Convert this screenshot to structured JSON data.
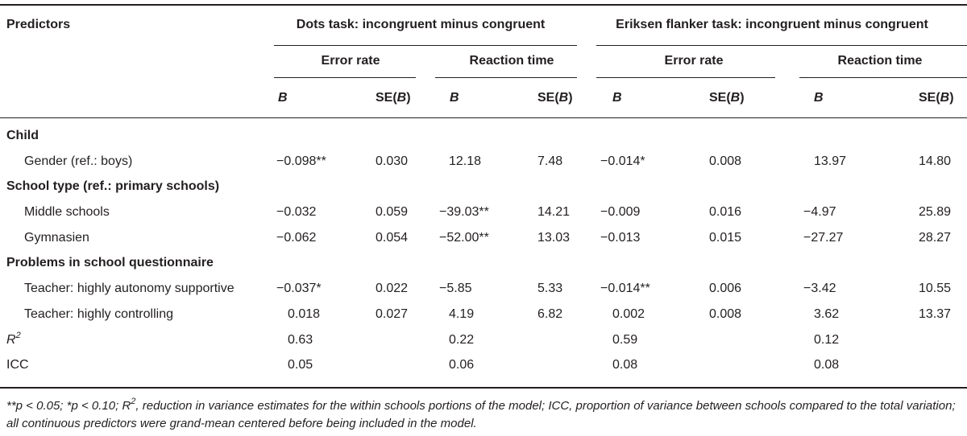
{
  "header": {
    "predictors": "Predictors",
    "dots_task": "Dots task: incongruent minus congruent",
    "eriksen_task": "Eriksen flanker task: incongruent minus congruent",
    "error_rate": "Error rate",
    "reaction_time": "Reaction time",
    "b": "B",
    "se_prefix": "SE(",
    "se_suffix": ")"
  },
  "sections": {
    "child": "Child",
    "school_type": "School type (ref.: primary schools)",
    "problems": "Problems in school questionnaire"
  },
  "rows": [
    {
      "label": "Gender (ref.: boys)",
      "values": [
        "−0.098**",
        "0.030",
        "12.18",
        "7.48",
        "−0.014*",
        "0.008",
        "13.97",
        "14.80"
      ]
    },
    {
      "label": "Middle schools",
      "values": [
        "−0.032",
        "0.059",
        "−39.03**",
        "14.21",
        "−0.009",
        "0.016",
        "−4.97",
        "25.89"
      ]
    },
    {
      "label": "Gymnasien",
      "values": [
        "−0.062",
        "0.054",
        "−52.00**",
        "13.03",
        "−0.013",
        "0.015",
        "−27.27",
        "28.27"
      ]
    },
    {
      "label": "Teacher: highly autonomy supportive",
      "values": [
        "−0.037*",
        "0.022",
        "−5.85",
        "5.33",
        "−0.014**",
        "0.006",
        "−3.42",
        "10.55"
      ]
    },
    {
      "label": "Teacher: highly controlling",
      "values": [
        "0.018",
        "0.027",
        "4.19",
        "6.82",
        "0.002",
        "0.008",
        "3.62",
        "13.37"
      ]
    }
  ],
  "r2": {
    "label_base": "R",
    "label_sup": "2",
    "values": [
      "0.63",
      "0.22",
      "0.59",
      "0.12"
    ]
  },
  "icc": {
    "label": "ICC",
    "values": [
      "0.05",
      "0.06",
      "0.08",
      "0.08"
    ]
  },
  "footnote": {
    "part1": "**p < 0.05; *p < 0.10; R",
    "sup": "2",
    "part2": ", reduction in variance estimates for the within schools portions of the model; ICC, proportion of variance between schools compared to the total variation; all continuous predictors were grand-mean centered before being included in the model."
  }
}
